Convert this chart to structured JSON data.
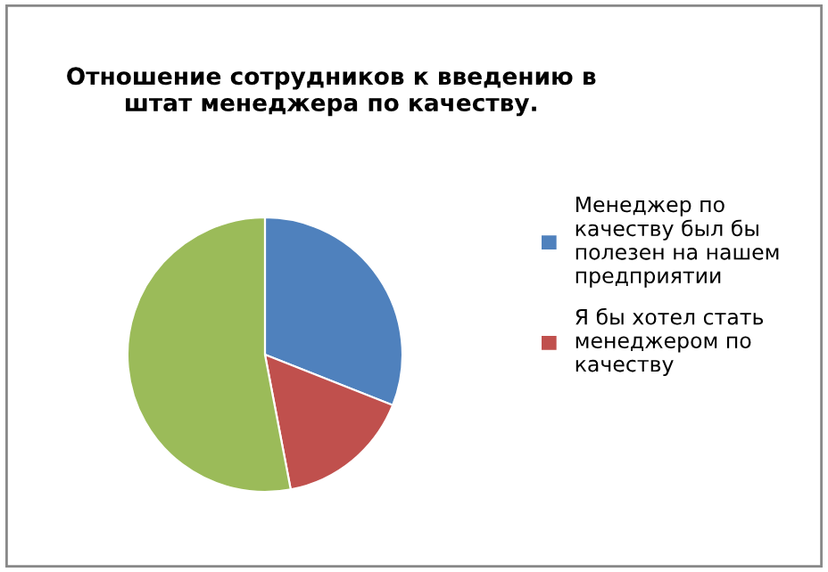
{
  "chart_data": {
    "type": "pie",
    "title": "Отношение сотрудников к введению в\nштат менеджера по качеству.",
    "categories": [
      "Менеджер по\nкачеству был бы\nполезен на нашем\nпредприятии",
      "Я бы хотел стать\nменеджером по\nкачеству",
      null
    ],
    "values": [
      31,
      16,
      53
    ],
    "colors": [
      "#4f81bd",
      "#c0504d",
      "#9bbb59"
    ],
    "legend": "right"
  }
}
